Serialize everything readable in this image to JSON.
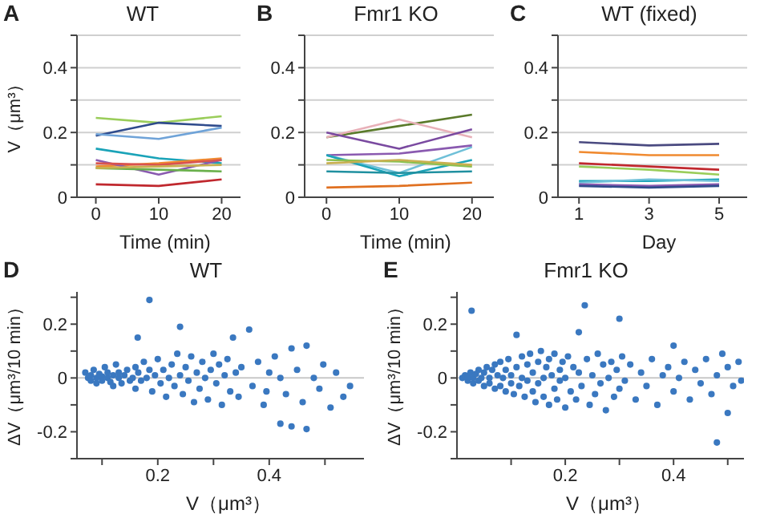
{
  "chart_data": [
    {
      "type": "line",
      "title": "WT",
      "xlabel": "Time (min)",
      "ylabel": "V（μm³）",
      "annotations": [
        "A"
      ],
      "x": [
        0,
        10,
        20
      ],
      "xlim": [
        -3,
        23
      ],
      "xticks": [
        0,
        10,
        20
      ],
      "ylim": [
        0,
        0.5
      ],
      "yticks": [
        0,
        {
          "value": 0.1,
          "label": null
        },
        0.2,
        {
          "value": 0.3,
          "label": null
        },
        0.4,
        {
          "value": 0.5,
          "label": null
        }
      ],
      "grid": "y",
      "series": [
        {
          "color": "#9acd5a",
          "values": [
            0.245,
            0.23,
            0.25
          ]
        },
        {
          "color": "#2f4b8c",
          "values": [
            0.19,
            0.23,
            0.22
          ]
        },
        {
          "color": "#6fa3d8",
          "values": [
            0.195,
            0.18,
            0.215
          ]
        },
        {
          "color": "#1aa3b8",
          "values": [
            0.15,
            0.12,
            0.105
          ]
        },
        {
          "color": "#f08a30",
          "values": [
            0.095,
            0.105,
            0.12
          ]
        },
        {
          "color": "#8a5ab0",
          "values": [
            0.115,
            0.07,
            0.115
          ]
        },
        {
          "color": "#d9534f",
          "values": [
            0.105,
            0.1,
            0.115
          ]
        },
        {
          "color": "#6ab04c",
          "values": [
            0.09,
            0.085,
            0.08
          ]
        },
        {
          "color": "#c8b050",
          "values": [
            0.09,
            0.095,
            0.1
          ]
        },
        {
          "color": "#c0282e",
          "values": [
            0.04,
            0.035,
            0.055
          ]
        }
      ]
    },
    {
      "type": "line",
      "title": "Fmr1 KO",
      "xlabel": "Time (min)",
      "annotations": [
        "B"
      ],
      "x": [
        0,
        10,
        20
      ],
      "xlim": [
        -3,
        23
      ],
      "xticks": [
        0,
        10,
        20
      ],
      "ylim": [
        0,
        0.5
      ],
      "yticks": [
        0,
        {
          "value": 0.1,
          "label": null
        },
        0.2,
        {
          "value": 0.3,
          "label": null
        },
        0.4,
        {
          "value": 0.5,
          "label": null
        }
      ],
      "grid": "y",
      "series": [
        {
          "color": "#5a7a2a",
          "values": [
            0.185,
            0.22,
            0.255
          ]
        },
        {
          "color": "#e8b0b8",
          "values": [
            0.185,
            0.24,
            0.185
          ]
        },
        {
          "color": "#7a4aa0",
          "values": [
            0.2,
            0.15,
            0.21
          ]
        },
        {
          "color": "#8a5ab0",
          "values": [
            0.13,
            0.135,
            0.16
          ]
        },
        {
          "color": "#6fc0d8",
          "values": [
            0.13,
            0.075,
            0.155
          ]
        },
        {
          "color": "#1aa3b8",
          "values": [
            0.13,
            0.065,
            0.115
          ]
        },
        {
          "color": "#8ac050",
          "values": [
            0.115,
            0.11,
            0.095
          ]
        },
        {
          "color": "#c8b050",
          "values": [
            0.105,
            0.115,
            0.1
          ]
        },
        {
          "color": "#2090a0",
          "values": [
            0.08,
            0.075,
            0.08
          ]
        },
        {
          "color": "#e07020",
          "values": [
            0.03,
            0.035,
            0.045
          ]
        }
      ]
    },
    {
      "type": "line",
      "title": "WT (fixed)",
      "xlabel": "Day",
      "annotations": [
        "C"
      ],
      "x": [
        1,
        3,
        5
      ],
      "xlim": [
        0.4,
        5.8
      ],
      "xticks": [
        1,
        3,
        5
      ],
      "ylim": [
        0,
        0.5
      ],
      "yticks": [
        0,
        {
          "value": 0.1,
          "label": null
        },
        0.2,
        {
          "value": 0.3,
          "label": null
        },
        0.4,
        {
          "value": 0.5,
          "label": null
        }
      ],
      "grid": "y",
      "series": [
        {
          "color": "#4a4a80",
          "values": [
            0.17,
            0.16,
            0.165
          ]
        },
        {
          "color": "#f08a30",
          "values": [
            0.14,
            0.13,
            0.13
          ]
        },
        {
          "color": "#c0282e",
          "values": [
            0.105,
            0.095,
            0.085
          ]
        },
        {
          "color": "#9acd5a",
          "values": [
            0.095,
            0.085,
            0.07
          ]
        },
        {
          "color": "#1aa3b8",
          "values": [
            0.05,
            0.05,
            0.055
          ]
        },
        {
          "color": "#6fc0d8",
          "values": [
            0.045,
            0.055,
            0.05
          ]
        },
        {
          "color": "#8a5ab0",
          "values": [
            0.04,
            0.035,
            0.04
          ]
        },
        {
          "color": "#2f4b8c",
          "values": [
            0.035,
            0.03,
            0.035
          ]
        }
      ]
    },
    {
      "type": "scatter",
      "title": "WT",
      "xlabel": "V（μm³）",
      "ylabel": "ΔV（μm³/10 min）",
      "annotations": [
        "D"
      ],
      "color": "#3a78c0",
      "xlim": [
        0.055,
        0.57
      ],
      "xticks": [
        {
          "value": 0.1,
          "label": null
        },
        0.2,
        {
          "value": 0.3,
          "label": null
        },
        0.4,
        {
          "value": 0.5,
          "label": null
        }
      ],
      "ylim": [
        -0.3,
        0.32
      ],
      "yticks": [
        {
          "value": -0.3,
          "label": null
        },
        -0.2,
        {
          "value": -0.1,
          "label": null
        },
        0,
        {
          "value": 0.1,
          "label": null
        },
        0.2,
        {
          "value": 0.3,
          "label": null
        }
      ],
      "ref_lines": [
        {
          "axis": "y",
          "value": 0,
          "color": "#c8c8c8"
        }
      ],
      "x": [
        0.07,
        0.075,
        0.08,
        0.08,
        0.085,
        0.09,
        0.09,
        0.095,
        0.1,
        0.1,
        0.105,
        0.11,
        0.11,
        0.115,
        0.12,
        0.12,
        0.125,
        0.13,
        0.13,
        0.135,
        0.14,
        0.145,
        0.15,
        0.155,
        0.16,
        0.16,
        0.165,
        0.17,
        0.175,
        0.18,
        0.185,
        0.19,
        0.195,
        0.2,
        0.205,
        0.21,
        0.215,
        0.22,
        0.225,
        0.23,
        0.235,
        0.24,
        0.245,
        0.25,
        0.255,
        0.26,
        0.265,
        0.27,
        0.275,
        0.28,
        0.285,
        0.29,
        0.295,
        0.3,
        0.305,
        0.31,
        0.315,
        0.32,
        0.325,
        0.33,
        0.335,
        0.34,
        0.345,
        0.35,
        0.185,
        0.24,
        0.364,
        0.164,
        0.37,
        0.38,
        0.39,
        0.395,
        0.4,
        0.41,
        0.42,
        0.42,
        0.43,
        0.44,
        0.44,
        0.45,
        0.46,
        0.467,
        0.467,
        0.48,
        0.49,
        0.497,
        0.51,
        0.52,
        0.533,
        0.545
      ],
      "values": [
        0.02,
        0,
        0.01,
        -0.01,
        0.03,
        0,
        -0.02,
        0.015,
        0.005,
        -0.01,
        0.04,
        0,
        0.02,
        -0.015,
        0.01,
        -0.03,
        0.05,
        0,
        0.02,
        -0.02,
        0.01,
        0.03,
        -0.01,
        0,
        0.04,
        -0.04,
        0.02,
        -0.01,
        0.06,
        0,
        0.03,
        -0.05,
        0.01,
        0.07,
        -0.02,
        0.03,
        -0.07,
        0,
        0.05,
        -0.03,
        0.09,
        0.01,
        -0.06,
        0.04,
        -0.01,
        0.08,
        -0.09,
        0.02,
        -0.04,
        0.06,
        0,
        -0.08,
        0.03,
        0.09,
        -0.02,
        0.05,
        -0.1,
        0.01,
        0.07,
        -0.05,
        0.15,
        0.02,
        -0.07,
        0.04,
        0.29,
        0.19,
        0.18,
        0.15,
        -0.03,
        0.06,
        -0.1,
        -0.05,
        0.02,
        0.08,
        -0.17,
        0,
        -0.06,
        0.11,
        -0.18,
        0.03,
        -0.09,
        0.12,
        -0.19,
        0,
        -0.04,
        0.05,
        -0.11,
        0.02,
        -0.07,
        -0.03
      ]
    },
    {
      "type": "scatter",
      "title": "Fmr1 KO",
      "xlabel": "V（μm³）",
      "ylabel": "ΔV（μm³/10 min）",
      "annotations": [
        "E"
      ],
      "color": "#3a78c0",
      "xlim": [
        0,
        0.53
      ],
      "xticks": [
        {
          "value": 0.1,
          "label": null
        },
        0.2,
        {
          "value": 0.3,
          "label": null
        },
        0.4,
        {
          "value": 0.5,
          "label": null
        }
      ],
      "ylim": [
        -0.3,
        0.32
      ],
      "yticks": [
        {
          "value": -0.3,
          "label": null
        },
        -0.2,
        {
          "value": -0.1,
          "label": null
        },
        0,
        {
          "value": 0.1,
          "label": null
        },
        0.2,
        {
          "value": 0.3,
          "label": null
        }
      ],
      "ref_lines": [
        {
          "axis": "y",
          "value": 0,
          "color": "#c8c8c8"
        }
      ],
      "x": [
        0.01,
        0.015,
        0.02,
        0.02,
        0.025,
        0.03,
        0.03,
        0.035,
        0.04,
        0.04,
        0.045,
        0.05,
        0.05,
        0.055,
        0.06,
        0.06,
        0.065,
        0.07,
        0.07,
        0.075,
        0.08,
        0.08,
        0.085,
        0.09,
        0.09,
        0.095,
        0.1,
        0.1,
        0.105,
        0.11,
        0.11,
        0.115,
        0.12,
        0.12,
        0.125,
        0.13,
        0.13,
        0.135,
        0.14,
        0.14,
        0.145,
        0.15,
        0.15,
        0.155,
        0.16,
        0.16,
        0.165,
        0.17,
        0.17,
        0.175,
        0.18,
        0.18,
        0.185,
        0.19,
        0.19,
        0.195,
        0.2,
        0.2,
        0.205,
        0.21,
        0.215,
        0.22,
        0.225,
        0.225,
        0.23,
        0.236,
        0.24,
        0.245,
        0.25,
        0.255,
        0.26,
        0.265,
        0.27,
        0.275,
        0.28,
        0.285,
        0.29,
        0.295,
        0.3,
        0.3,
        0.305,
        0.31,
        0.32,
        0.33,
        0.34,
        0.35,
        0.36,
        0.37,
        0.38,
        0.39,
        0.4,
        0.4,
        0.41,
        0.42,
        0.43,
        0.44,
        0.45,
        0.46,
        0.47,
        0.48,
        0.48,
        0.49,
        0.5,
        0.5,
        0.51,
        0.52,
        0.525,
        0.027
      ],
      "values": [
        0,
        0.01,
        -0.01,
        0.005,
        0.02,
        -0.02,
        0,
        0.015,
        -0.01,
        0.03,
        0,
        -0.03,
        0.02,
        0.04,
        -0.02,
        0,
        0.03,
        -0.04,
        0.05,
        0.01,
        -0.03,
        0.06,
        0,
        -0.05,
        0.03,
        0.07,
        -0.02,
        0.01,
        -0.06,
        0.04,
        0.16,
        -0.03,
        0.08,
        0,
        -0.07,
        0.05,
        -0.01,
        0.09,
        -0.05,
        0.02,
        -0.09,
        0.06,
        -0.02,
        0.1,
        0,
        -0.07,
        0.04,
        -0.1,
        0.07,
        0.01,
        -0.04,
        0.09,
        -0.08,
        0.03,
        -0.01,
        0.06,
        -0.11,
        0,
        0.08,
        -0.05,
        0.04,
        -0.08,
        0.17,
        0.02,
        -0.03,
        0.27,
        0.07,
        -0.1,
        0.01,
        -0.06,
        0.09,
        -0.02,
        0.05,
        -0.12,
        0,
        0.06,
        -0.07,
        0.03,
        0.22,
        -0.04,
        0.08,
        -0.01,
        0.05,
        -0.08,
        0.02,
        -0.03,
        0.07,
        -0.1,
        0.01,
        0.04,
        0.12,
        -0.05,
        0,
        0.06,
        -0.08,
        0.03,
        -0.02,
        0.07,
        -0.06,
        -0.24,
        0.01,
        0.09,
        -0.13,
        0.04,
        -0.03,
        0.06,
        -0.01,
        0.25
      ]
    }
  ]
}
